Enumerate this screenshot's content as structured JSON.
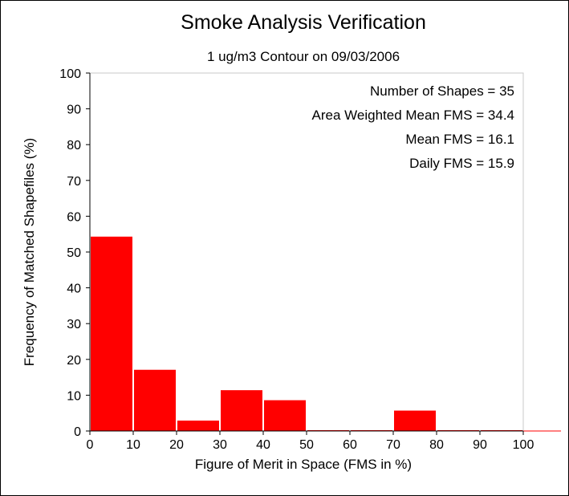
{
  "chart_data": {
    "type": "bar",
    "title": "Smoke Analysis Verification",
    "subtitle": "1 ug/m3 Contour on 09/03/2006",
    "xlabel": "Figure of Merit in Space (FMS in %)",
    "ylabel": "Frequency of Matched Shapefiles (%)",
    "xlim": [
      0,
      100
    ],
    "ylim": [
      0,
      100
    ],
    "x_ticks": [
      "0",
      "10",
      "20",
      "30",
      "40",
      "50",
      "60",
      "70",
      "80",
      "90",
      "100"
    ],
    "y_ticks": [
      "0",
      "10",
      "20",
      "30",
      "40",
      "50",
      "60",
      "70",
      "80",
      "90",
      "100"
    ],
    "bins": [
      {
        "x0": 0,
        "x1": 10,
        "value": 54.3
      },
      {
        "x0": 10,
        "x1": 20,
        "value": 17.1
      },
      {
        "x0": 20,
        "x1": 30,
        "value": 2.9
      },
      {
        "x0": 30,
        "x1": 40,
        "value": 11.4
      },
      {
        "x0": 40,
        "x1": 50,
        "value": 8.6
      },
      {
        "x0": 50,
        "x1": 60,
        "value": 0
      },
      {
        "x0": 60,
        "x1": 70,
        "value": 0
      },
      {
        "x0": 70,
        "x1": 80,
        "value": 5.7
      },
      {
        "x0": 80,
        "x1": 90,
        "value": 0
      },
      {
        "x0": 90,
        "x1": 100,
        "value": 0
      }
    ],
    "annotations": [
      "Number of Shapes = 35",
      "Area Weighted Mean FMS = 34.4",
      "Mean FMS = 16.1",
      "Daily FMS = 15.9"
    ],
    "bar_color": "#ff0000",
    "grid": false,
    "legend": "none"
  }
}
